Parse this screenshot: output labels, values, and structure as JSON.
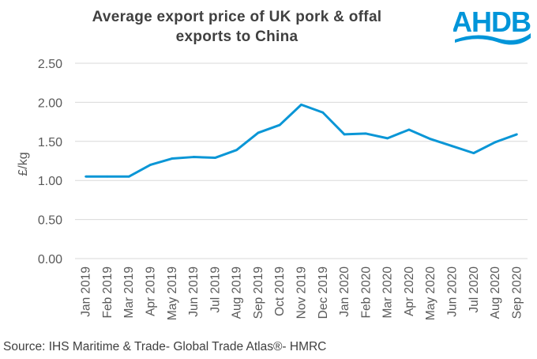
{
  "logo": {
    "text": "AHDB",
    "color": "#0095D9"
  },
  "source": "Source: IHS Maritime & Trade- Global Trade Atlas®- HMRC",
  "chart_data": {
    "type": "line",
    "title": "Average export price of UK pork & offal exports to China",
    "title_lines": [
      "Average export price of UK pork & offal",
      "exports to China"
    ],
    "ylabel": "£/kg",
    "xlabel": "",
    "ylim": [
      0,
      2.5
    ],
    "yticks": [
      "0.00",
      "0.50",
      "1.00",
      "1.50",
      "2.00",
      "2.50"
    ],
    "grid": true,
    "categories": [
      "Jan 2019",
      "Feb 2019",
      "Mar 2019",
      "Apr 2019",
      "May 2019",
      "Jun 2019",
      "Jul 2019",
      "Aug 2019",
      "Sep 2019",
      "Oct 2019",
      "Nov 2019",
      "Dec 2019",
      "Jan 2020",
      "Feb 2020",
      "Mar 2020",
      "Apr 2020",
      "May 2020",
      "Jun 2020",
      "Jul 2020",
      "Aug 2020",
      "Sep 2020"
    ],
    "series": [
      {
        "name": "Average export price",
        "color": "#0A96D6",
        "values": [
          1.05,
          1.05,
          1.05,
          1.2,
          1.28,
          1.3,
          1.29,
          1.39,
          1.61,
          1.71,
          1.97,
          1.87,
          1.59,
          1.6,
          1.54,
          1.65,
          1.53,
          1.44,
          1.35,
          1.49,
          1.59
        ]
      }
    ]
  }
}
